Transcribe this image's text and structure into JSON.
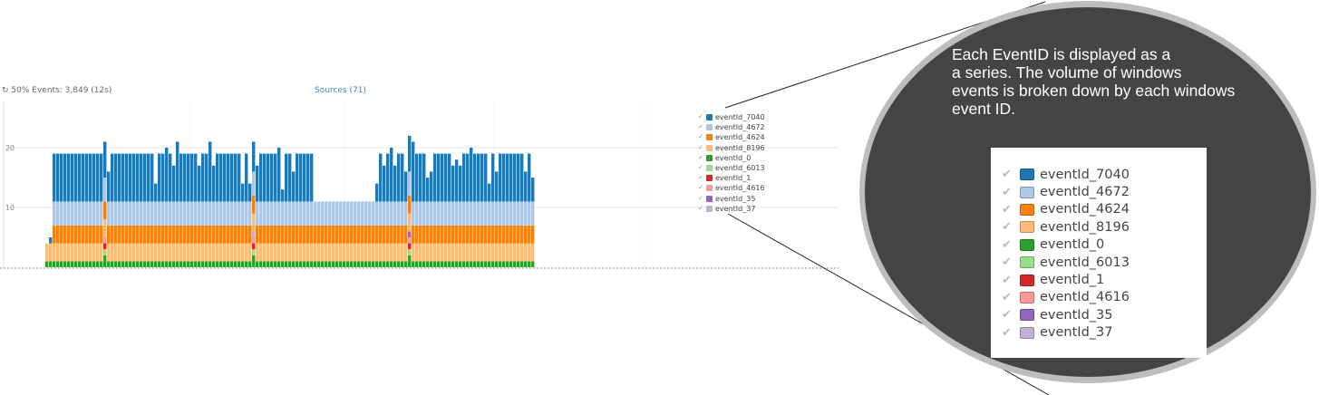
{
  "header": {
    "status_text": "50% Events: 3,849 (12s)",
    "sources_link": "Sources (71)"
  },
  "colors": {
    "eventId_7040": "#1f77b4",
    "eventId_4672": "#aec7e8",
    "eventId_4624": "#ff7f0e",
    "eventId_8196": "#ffbb78",
    "eventId_0": "#2ca02c",
    "eventId_6013": "#98df8a",
    "eventId_1": "#d62728",
    "eventId_4616": "#ff9896",
    "eventId_35": "#9467bd",
    "eventId_37": "#c5b0d5",
    "callout_fill": "#444444",
    "callout_ring": "#bdbdbd"
  },
  "legend": {
    "items": [
      {
        "label": "eventId_7040",
        "color": "#1f77b4"
      },
      {
        "label": "eventId_4672",
        "color": "#aec7e8"
      },
      {
        "label": "eventId_4624",
        "color": "#ff7f0e"
      },
      {
        "label": "eventId_8196",
        "color": "#ffbb78"
      },
      {
        "label": "eventId_0",
        "color": "#2ca02c"
      },
      {
        "label": "eventId_6013",
        "color": "#98df8a"
      },
      {
        "label": "eventId_1",
        "color": "#d62728"
      },
      {
        "label": "eventId_4616",
        "color": "#ff9896"
      },
      {
        "label": "eventId_35",
        "color": "#9467bd"
      },
      {
        "label": "eventId_37",
        "color": "#c5b0d5"
      }
    ],
    "check_icon": "check-icon"
  },
  "callout": {
    "lines": [
      "Each EventID is displayed as a",
      "a series. The volume of windows",
      "events is broken down by each windows",
      "event ID."
    ]
  },
  "chart_data": {
    "type": "bar",
    "stacked": true,
    "title": "",
    "xlabel": "",
    "ylabel": "",
    "ylim": [
      0,
      27
    ],
    "yticks": [
      10,
      20
    ],
    "grid": true,
    "legend_position": "right",
    "num_bars": 135,
    "series": [
      {
        "name": "eventId_0",
        "default": 1,
        "overrides": {
          "16": 2,
          "57": 2,
          "100": 2
        }
      },
      {
        "name": "eventId_6013",
        "default": 0,
        "overrides": {
          "16": 1,
          "57": 1,
          "100": 1
        }
      },
      {
        "name": "eventId_1",
        "default": 0,
        "overrides": {
          "16": 1,
          "57": 1,
          "100": 1
        }
      },
      {
        "name": "eventId_4616",
        "default": 0,
        "overrides": {
          "16": 1,
          "57": 1,
          "100": 1
        }
      },
      {
        "name": "eventId_35",
        "default": 0,
        "overrides": {
          "100": 1
        }
      },
      {
        "name": "eventId_37",
        "default": 0,
        "overrides": {
          "57": 1
        }
      },
      {
        "name": "eventId_8196",
        "default": 3
      },
      {
        "name": "eventId_4624",
        "default": 3,
        "overrides": {
          "0": 0,
          "1": 0
        }
      },
      {
        "name": "eventId_4672",
        "default": 4,
        "overrides": {
          "0": 0,
          "1": 0
        }
      },
      {
        "name": "eventId_7040",
        "default": 8,
        "overrides": {
          "0": 0,
          "1": 1,
          "16": 6,
          "17": 5,
          "30": 3,
          "32": 8,
          "33": 9,
          "35": 6,
          "36": 10,
          "42": 6,
          "45": 10,
          "46": 6,
          "54": 3,
          "56": 3,
          "57": 5,
          "58": 6,
          "64": 9,
          "65": 2,
          "68": 5,
          "74": 0,
          "75": 0,
          "76": 0,
          "77": 0,
          "78": 0,
          "79": 0,
          "80": 0,
          "81": 0,
          "82": 0,
          "83": 0,
          "84": 0,
          "85": 0,
          "86": 0,
          "87": 0,
          "88": 0,
          "89": 0,
          "90": 0,
          "91": 3,
          "93": 6,
          "95": 9,
          "96": 6,
          "99": 5,
          "100": 6,
          "101": 10,
          "105": 4,
          "106": 5,
          "112": 6,
          "113": 7,
          "114": 6,
          "117": 9,
          "122": 3,
          "124": 5,
          "128": 8,
          "132": 5,
          "134": 4
        }
      }
    ]
  }
}
